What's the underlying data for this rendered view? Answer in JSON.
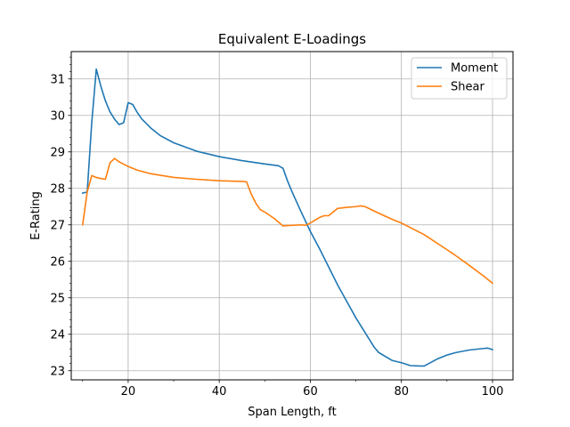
{
  "chart_data": {
    "type": "line",
    "title": "Equivalent E-Loadings",
    "xlabel": "Span Length, ft",
    "ylabel": "E-Rating",
    "xlim": [
      7.5,
      104.5
    ],
    "ylim": [
      22.75,
      31.75
    ],
    "xticks": [
      20,
      40,
      60,
      80,
      100
    ],
    "yticks": [
      23,
      24,
      25,
      26,
      27,
      28,
      29,
      30,
      31
    ],
    "grid": true,
    "legend_position": "top-right",
    "series": [
      {
        "name": "Moment",
        "color": "#1f77b4",
        "x": [
          10,
          11,
          12,
          13,
          14,
          15,
          16,
          17,
          18,
          19,
          20,
          21,
          22,
          23,
          25,
          27,
          30,
          35,
          40,
          45,
          50,
          53,
          54,
          55,
          56,
          58,
          60,
          62,
          64,
          66,
          68,
          70,
          72,
          74,
          75,
          78,
          80,
          82,
          84,
          85,
          88,
          90,
          92,
          95,
          98,
          99,
          100
        ],
        "y": [
          27.87,
          27.9,
          29.8,
          31.27,
          30.8,
          30.4,
          30.1,
          29.9,
          29.75,
          29.8,
          30.35,
          30.3,
          30.08,
          29.9,
          29.65,
          29.45,
          29.25,
          29.02,
          28.87,
          28.76,
          28.67,
          28.62,
          28.55,
          28.2,
          27.9,
          27.35,
          26.82,
          26.35,
          25.85,
          25.35,
          24.9,
          24.45,
          24.05,
          23.65,
          23.5,
          23.28,
          23.22,
          23.14,
          23.13,
          23.13,
          23.33,
          23.43,
          23.5,
          23.57,
          23.61,
          23.62,
          23.58
        ]
      },
      {
        "name": "Shear",
        "color": "#ff7f0e",
        "x": [
          10,
          11,
          12,
          13,
          14,
          15,
          16,
          17,
          18,
          20,
          22,
          25,
          30,
          35,
          40,
          45,
          46,
          47,
          48,
          49,
          50,
          52,
          54,
          55,
          58,
          59,
          60,
          62,
          63,
          64,
          65,
          66,
          68,
          70,
          71,
          72,
          75,
          78,
          80,
          85,
          90,
          92,
          95,
          98,
          100
        ],
        "y": [
          27.0,
          27.9,
          28.35,
          28.3,
          28.27,
          28.25,
          28.7,
          28.82,
          28.73,
          28.6,
          28.5,
          28.4,
          28.3,
          28.25,
          28.21,
          28.19,
          28.18,
          27.85,
          27.6,
          27.42,
          27.35,
          27.18,
          26.97,
          26.98,
          27.0,
          26.99,
          27.05,
          27.2,
          27.25,
          27.25,
          27.35,
          27.45,
          27.48,
          27.5,
          27.52,
          27.5,
          27.32,
          27.15,
          27.05,
          26.73,
          26.32,
          26.15,
          25.88,
          25.6,
          25.4
        ]
      }
    ]
  }
}
